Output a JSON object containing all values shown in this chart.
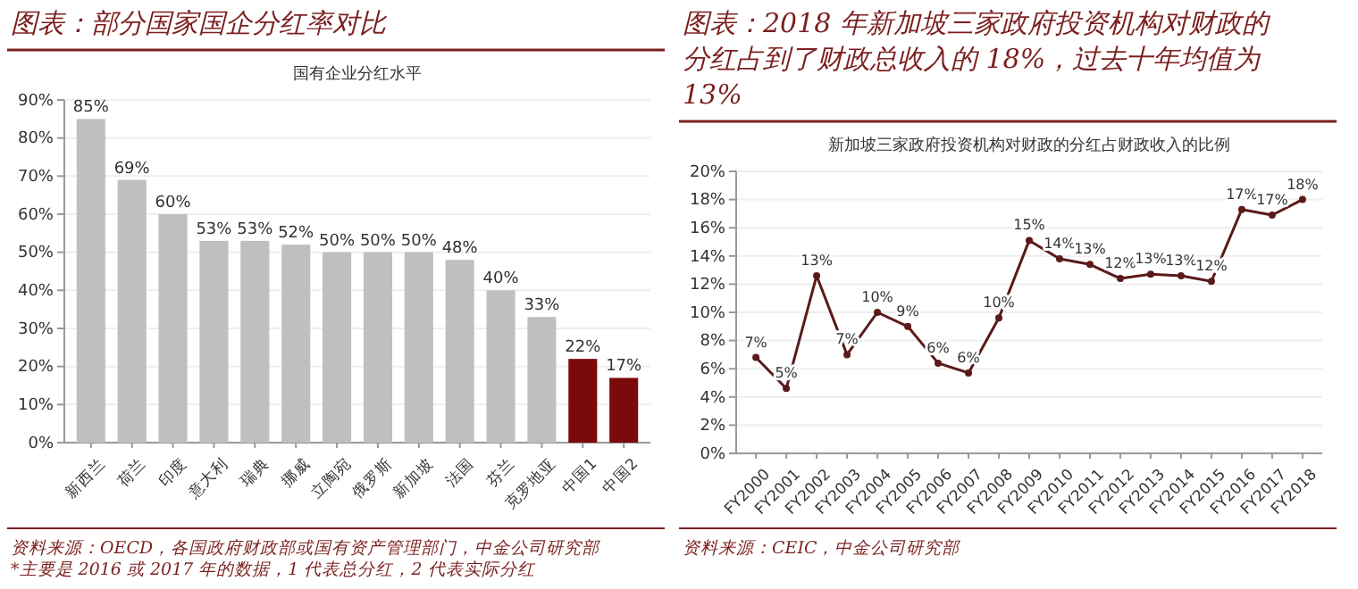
{
  "chart_data": [
    {
      "type": "bar",
      "title": "图表：部分国家国企分红率对比",
      "subtitle": "国有企业分红水平",
      "categories": [
        "新西兰",
        "荷兰",
        "印度",
        "意大利",
        "瑞典",
        "挪威",
        "立陶宛",
        "俄罗斯",
        "新加坡",
        "法国",
        "芬兰",
        "克罗地亚",
        "中国1",
        "中国2"
      ],
      "values": [
        85,
        69,
        60,
        53,
        53,
        52,
        50,
        50,
        50,
        48,
        40,
        33,
        22,
        17
      ],
      "colors": [
        "#bfbfbf",
        "#bfbfbf",
        "#bfbfbf",
        "#bfbfbf",
        "#bfbfbf",
        "#bfbfbf",
        "#bfbfbf",
        "#bfbfbf",
        "#bfbfbf",
        "#bfbfbf",
        "#bfbfbf",
        "#bfbfbf",
        "#7b0a0a",
        "#7b0a0a"
      ],
      "value_labels": [
        "85%",
        "69%",
        "60%",
        "53%",
        "53%",
        "52%",
        "50%",
        "50%",
        "50%",
        "48%",
        "40%",
        "33%",
        "22%",
        "17%"
      ],
      "ylim": [
        0,
        90
      ],
      "yticks": [
        {
          "value": 0,
          "label": "0%"
        },
        {
          "value": 10,
          "label": "10%"
        },
        {
          "value": 20,
          "label": "20%"
        },
        {
          "value": 30,
          "label": "30%"
        },
        {
          "value": 40,
          "label": "40%"
        },
        {
          "value": 50,
          "label": "50%"
        },
        {
          "value": 60,
          "label": "60%"
        },
        {
          "value": 70,
          "label": "70%"
        },
        {
          "value": 80,
          "label": "80%"
        },
        {
          "value": 90,
          "label": "90%"
        }
      ],
      "grid": "y",
      "annotations": [
        "资料来源：OECD，各国政府财政部或国有资产管理部门，中金公司研究部",
        "*主要是 2016 或 2017 年的数据，1 代表总分红，2 代表实际分红"
      ]
    },
    {
      "type": "line",
      "title": "图表：2018 年新加坡三家政府投资机构对财政的分红占到了财政总收入的 18%，过去十年均值为 13%",
      "subtitle": "新加坡三家政府投资机构对财政的分红占财政收入的比例",
      "categories": [
        "FY2000",
        "FY2001",
        "FY2002",
        "FY2003",
        "FY2004",
        "FY2005",
        "FY2006",
        "FY2007",
        "FY2008",
        "FY2009",
        "FY2010",
        "FY2011",
        "FY2012",
        "FY2013",
        "FY2014",
        "FY2015",
        "FY2016",
        "FY2017",
        "FY2018"
      ],
      "series": [
        {
          "color": "#5a1a1a",
          "values": [
            6.8,
            4.6,
            12.6,
            7.0,
            10.0,
            9.0,
            6.4,
            5.7,
            9.6,
            15.1,
            13.8,
            13.4,
            12.4,
            12.7,
            12.6,
            12.2,
            17.3,
            16.9,
            18.0
          ],
          "value_labels": [
            "7%",
            "5%",
            "13%",
            "7%",
            "10%",
            "9%",
            "6%",
            "6%",
            "10%",
            "15%",
            "14%",
            "13%",
            "12%",
            "13%",
            "13%",
            "12%",
            "17%",
            "17%",
            "18%"
          ]
        }
      ],
      "marker": "circle",
      "line_style": "solid",
      "ylim": [
        0,
        20
      ],
      "yticks": [
        {
          "value": 0,
          "label": "0%"
        },
        {
          "value": 2,
          "label": "2%"
        },
        {
          "value": 4,
          "label": "4%"
        },
        {
          "value": 6,
          "label": "6%"
        },
        {
          "value": 8,
          "label": "8%"
        },
        {
          "value": 10,
          "label": "10%"
        },
        {
          "value": 12,
          "label": "12%"
        },
        {
          "value": 14,
          "label": "14%"
        },
        {
          "value": 16,
          "label": "16%"
        },
        {
          "value": 18,
          "label": "18%"
        },
        {
          "value": 20,
          "label": "20%"
        }
      ],
      "grid": "y",
      "annotations": [
        "资料来源：CEIC，中金公司研究部"
      ]
    }
  ]
}
